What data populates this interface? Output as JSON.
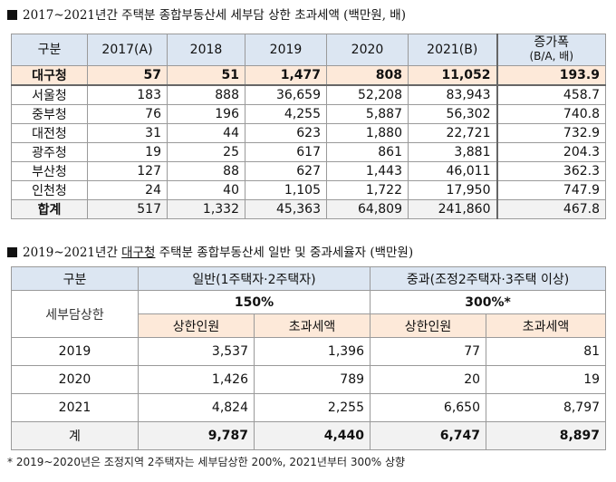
{
  "table1": {
    "title": "2017~2021년간 주택분 종합부동산세 세부담 상한 초과세액 (백만원, 배)",
    "headers": [
      "구분",
      "2017(A)",
      "2018",
      "2019",
      "2020",
      "2021(B)",
      "증가폭",
      "(B/A, 배)"
    ],
    "rows": [
      [
        "대구청",
        "57",
        "51",
        "1,477",
        "808",
        "11,052",
        "193.9"
      ],
      [
        "서울청",
        "183",
        "888",
        "36,659",
        "52,208",
        "83,943",
        "458.7"
      ],
      [
        "중부청",
        "76",
        "196",
        "4,255",
        "5,887",
        "56,302",
        "740.8"
      ],
      [
        "대전청",
        "31",
        "44",
        "623",
        "1,880",
        "22,721",
        "732.9"
      ],
      [
        "광주청",
        "19",
        "25",
        "617",
        "861",
        "3,881",
        "204.3"
      ],
      [
        "부산청",
        "127",
        "88",
        "627",
        "1,443",
        "46,011",
        "362.3"
      ],
      [
        "인천청",
        "24",
        "40",
        "1,105",
        "1,722",
        "17,950",
        "747.9"
      ],
      [
        "합계",
        "517",
        "1,332",
        "45,363",
        "64,809",
        "241,860",
        "467.8"
      ]
    ]
  },
  "table2": {
    "title_prefix": "2019~2021년간",
    "title_highlight": "대구청",
    "title_suffix": "주택분 종합부동산세 일반 및 중과세율자 (백만원)",
    "col_label": "구분",
    "row_label": "세부담상한",
    "group_general": "일반(1주택자·2주택자)",
    "group_heavy": "중과(조정2주택자·3주택 이상)",
    "pct_general": "150%",
    "pct_heavy": "300%*",
    "sub_people": "상한인원",
    "sub_tax": "초과세액",
    "rows": [
      [
        "2019",
        "3,537",
        "1,396",
        "77",
        "81"
      ],
      [
        "2020",
        "1,426",
        "789",
        "20",
        "19"
      ],
      [
        "2021",
        "4,824",
        "2,255",
        "6,650",
        "8,797"
      ]
    ],
    "total": [
      "계",
      "9,787",
      "4,440",
      "6,747",
      "8,897"
    ]
  },
  "footnote": "* 2019~2020년은 조정지역 2주택자는 세부담상한 200%, 2021년부터 300% 상향"
}
